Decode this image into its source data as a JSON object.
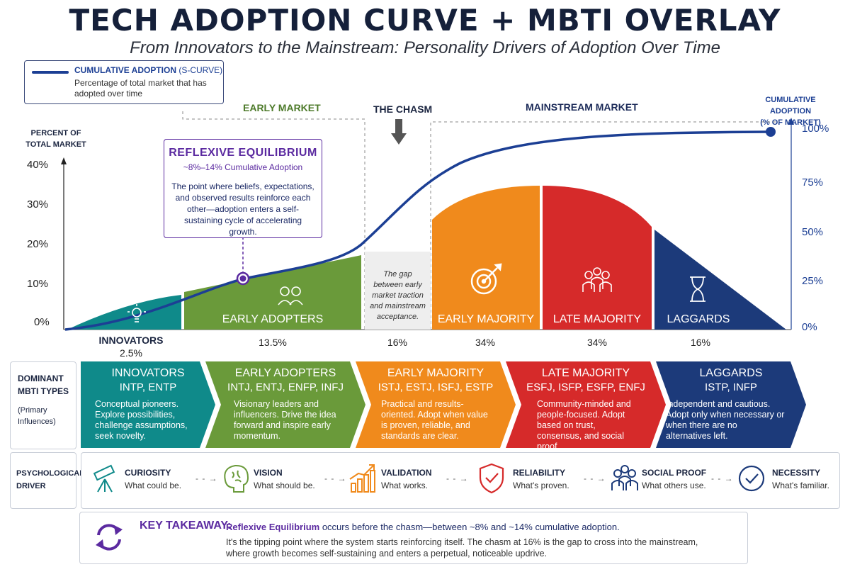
{
  "title": "TECH ADOPTION CURVE + MBTI OVERLAY",
  "subtitle": "From Innovators to the Mainstream: Personality Drivers of Adoption Over Time",
  "legend": {
    "name": "CUMULATIVE ADOPTION",
    "name_suffix": "(S-CURVE)",
    "desc": "Percentage of total market that has adopted over time"
  },
  "sections": {
    "early_market": "EARLY MARKET",
    "chasm": "THE CHASM",
    "mainstream": "MAINSTREAM MARKET"
  },
  "left_axis": {
    "title_line1": "PERCENT OF",
    "title_line2": "TOTAL MARKET",
    "ticks": [
      "40%",
      "30%",
      "20%",
      "10%",
      "0%"
    ]
  },
  "right_axis": {
    "title_line1": "CUMULATIVE ADOPTION",
    "title_line2": "(% OF MARKET)",
    "ticks": [
      "100%",
      "75%",
      "50%",
      "25%",
      "0%"
    ]
  },
  "callout": {
    "title": "REFLEXIVE EQUILIBRIUM",
    "subtitle": "~8%–14% Cumulative Adoption",
    "body": "The point where beliefs, expectations, and observed results reinforce each other—adoption enters a self-sustaining cycle of accelerating growth."
  },
  "chasm_note": "The gap between early market traction and mainstream acceptance.",
  "segments": [
    {
      "label": "INNOVATORS",
      "pct": "2.5%",
      "color": "#0f8a8a"
    },
    {
      "label": "EARLY ADOPTERS",
      "pct": "13.5%",
      "color": "#6a9a3a"
    },
    {
      "label": "",
      "pct": "16%",
      "color": "#eeeeee"
    },
    {
      "label": "EARLY MAJORITY",
      "pct": "34%",
      "color": "#f08a1c"
    },
    {
      "label": "LATE MAJORITY",
      "pct": "34%",
      "color": "#d62a2a"
    },
    {
      "label": "LAGGARDS",
      "pct": "16%",
      "color": "#1c3a7a"
    }
  ],
  "mbti": {
    "row_label_line1": "DOMINANT",
    "row_label_line2": "MBTI TYPES",
    "row_sub": "(Primary Influences)",
    "groups": [
      {
        "name": "INNOVATORS",
        "types": "INTP, ENTP",
        "desc": "Conceptual pioneers. Explore possibilities, challenge assumptions, seek novelty.",
        "color": "#0f8a8a"
      },
      {
        "name": "EARLY ADOPTERS",
        "types": "INTJ, ENTJ, ENFP, INFJ",
        "desc": "Visionary leaders and influencers. Drive the idea forward and inspire early momentum.",
        "color": "#6a9a3a"
      },
      {
        "name": "EARLY MAJORITY",
        "types": "ISTJ, ESTJ, ISFJ, ESTP",
        "desc": "Practical and results-oriented. Adopt when value is proven, reliable, and standards are clear.",
        "color": "#f08a1c"
      },
      {
        "name": "LATE MAJORITY",
        "types": "ESFJ, ISFP, ESFP, ENFJ",
        "desc": "Community-minded and people-focused. Adopt based on trust, consensus, and social proof.",
        "color": "#d62a2a"
      },
      {
        "name": "LAGGARDS",
        "types": "ISTP, INFP",
        "desc": "Independent and cautious. Adopt only when necessary or when there are no alternatives left.",
        "color": "#1c3a7a"
      }
    ]
  },
  "drivers": {
    "label_line1": "PSYCHOLOGICAL",
    "label_line2": "DRIVER",
    "items": [
      {
        "title": "CURIOSITY",
        "sub": "What could be.",
        "icon": "telescope-icon",
        "color": "#0f8a8a"
      },
      {
        "title": "VISION",
        "sub": "What should be.",
        "icon": "brain-icon",
        "color": "#6a9a3a"
      },
      {
        "title": "VALIDATION",
        "sub": "What works.",
        "icon": "bar-chart-icon",
        "color": "#f08a1c"
      },
      {
        "title": "RELIABILITY",
        "sub": "What's proven.",
        "icon": "shield-check-icon",
        "color": "#d62a2a"
      },
      {
        "title": "SOCIAL PROOF",
        "sub": "What others use.",
        "icon": "group-icon",
        "color": "#1c3a7a"
      },
      {
        "title": "NECESSITY",
        "sub": "What's familiar.",
        "icon": "check-circle-icon",
        "color": "#1c3a7a"
      }
    ],
    "arrow": "- - →"
  },
  "takeaway": {
    "title": "KEY TAKEAWAY:",
    "lead": "Reflexive Equilibrium",
    "main": "occurs before the chasm—between ~8% and ~14% cumulative adoption.",
    "body": "It's the tipping point where the system starts reinforcing itself. The chasm at 16% is the gap to cross into the mainstream, where growth becomes self-sustaining and enters a perpetual, noticeable updrive."
  }
}
